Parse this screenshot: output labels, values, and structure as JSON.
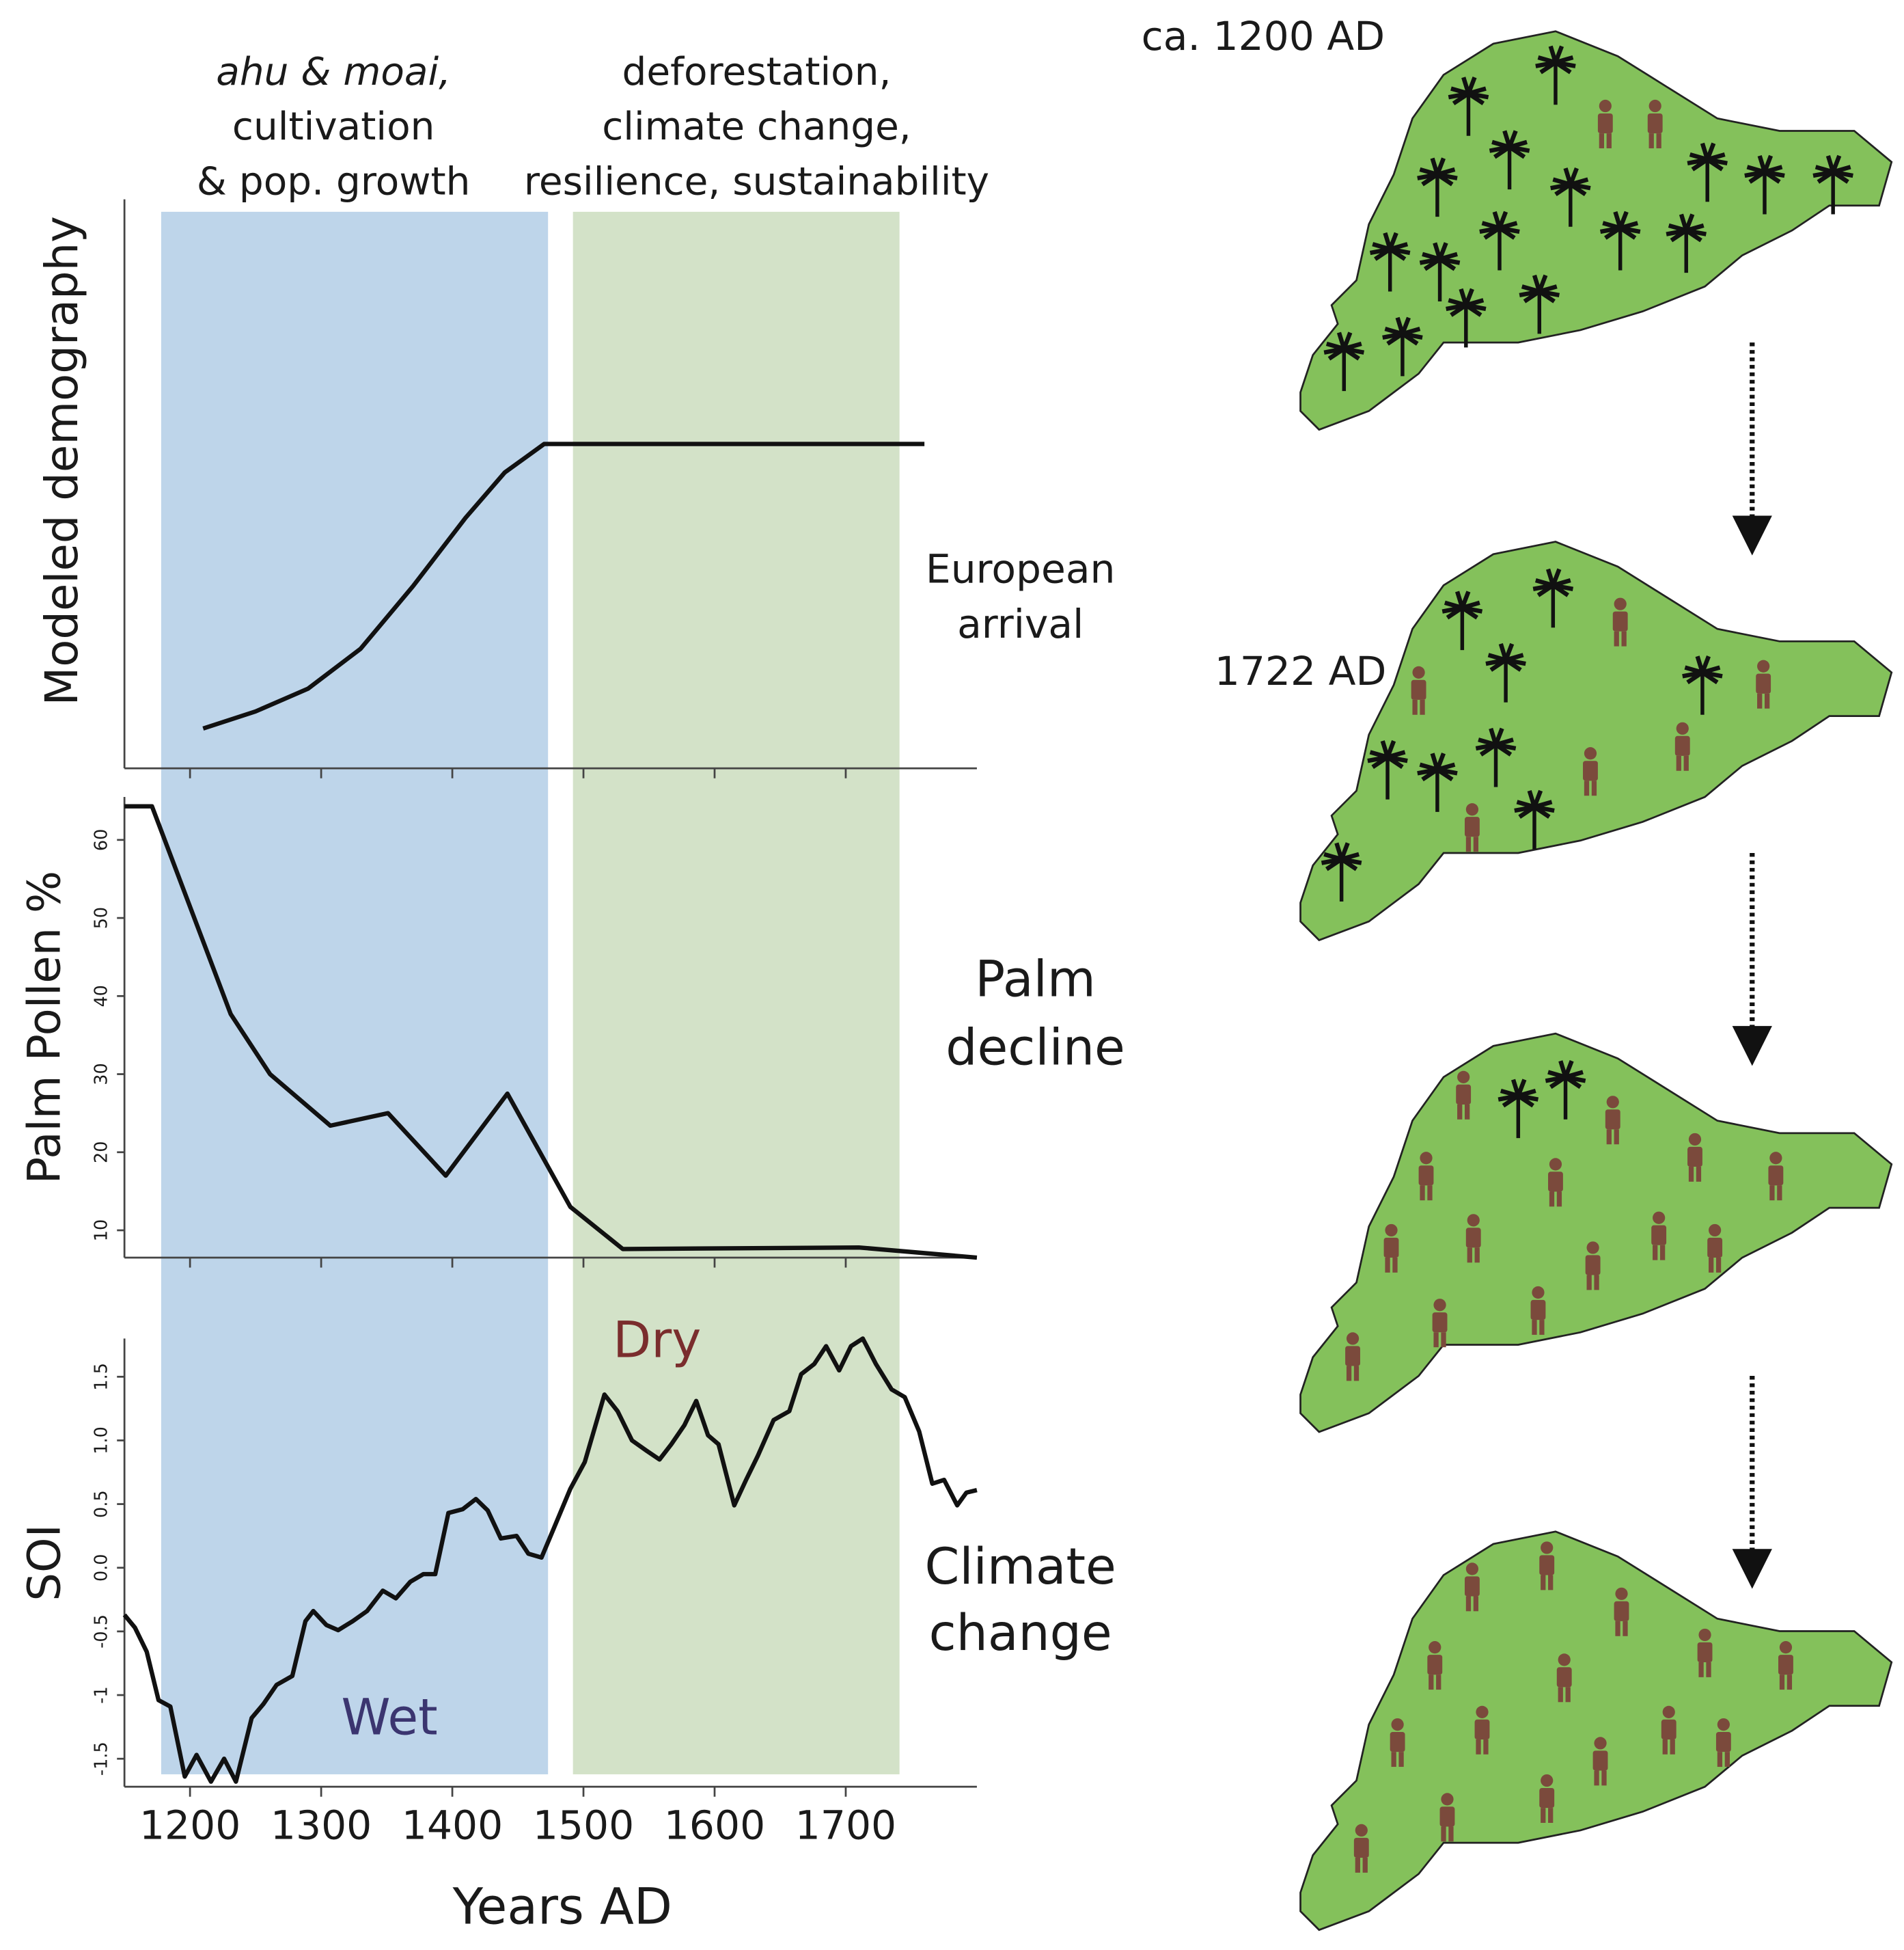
{
  "chart_data": [
    {
      "type": "line",
      "ylabel": "Modeled demography",
      "x": [
        1210,
        1250,
        1290,
        1330,
        1370,
        1410,
        1440,
        1470,
        1760
      ],
      "values": [
        7,
        10,
        14,
        21,
        32,
        44,
        52,
        57,
        57
      ],
      "ylim": [
        0,
        100
      ],
      "color": "#111111",
      "annotation": [
        "European",
        "arrival"
      ]
    },
    {
      "type": "line",
      "ylabel": "Palm Pollen %",
      "x": [
        1150,
        1171,
        1231,
        1261,
        1307,
        1351,
        1395,
        1442,
        1490,
        1530,
        1710,
        1800
      ],
      "values": [
        64.3,
        64.3,
        37.7,
        30,
        23.4,
        25,
        17,
        27.5,
        13,
        7.6,
        7.8,
        6.5
      ],
      "ylim": [
        6.5,
        65.5
      ],
      "yticks": [
        10,
        20,
        30,
        40,
        50,
        60
      ],
      "color": "#111111",
      "annotation": [
        "Palm",
        "decline"
      ]
    },
    {
      "type": "line",
      "ylabel": "SOI",
      "xlabel": "Years AD",
      "xlim": [
        1150,
        1800
      ],
      "xticks": [
        1200,
        1300,
        1400,
        1500,
        1600,
        1700
      ],
      "x": [
        1150,
        1158,
        1167,
        1176,
        1185,
        1196,
        1205,
        1216,
        1226,
        1235,
        1247,
        1256,
        1266,
        1278,
        1288,
        1294,
        1304,
        1313,
        1324,
        1335,
        1347,
        1357,
        1368,
        1378,
        1387,
        1397,
        1408,
        1418,
        1427,
        1437,
        1449,
        1458,
        1468,
        1477,
        1490,
        1501,
        1516,
        1526,
        1537,
        1548,
        1558,
        1567,
        1577,
        1586,
        1595,
        1603,
        1615,
        1624,
        1633,
        1645,
        1657,
        1666,
        1676,
        1685,
        1695,
        1704,
        1713,
        1723,
        1735,
        1745,
        1756,
        1766,
        1775,
        1785,
        1792,
        1800
      ],
      "values": [
        -0.37,
        -0.47,
        -0.66,
        -1.04,
        -1.09,
        -1.64,
        -1.47,
        -1.68,
        -1.5,
        -1.68,
        -1.18,
        -1.07,
        -0.92,
        -0.85,
        -0.42,
        -0.34,
        -0.45,
        -0.49,
        -0.42,
        -0.34,
        -0.18,
        -0.24,
        -0.11,
        -0.05,
        -0.05,
        0.43,
        0.46,
        0.54,
        0.45,
        0.23,
        0.25,
        0.11,
        0.08,
        0.3,
        0.62,
        0.83,
        1.36,
        1.23,
        1.0,
        0.92,
        0.85,
        0.97,
        1.12,
        1.31,
        1.04,
        0.97,
        0.49,
        0.69,
        0.88,
        1.16,
        1.23,
        1.52,
        1.6,
        1.74,
        1.55,
        1.74,
        1.8,
        1.6,
        1.4,
        1.34,
        1.07,
        0.66,
        0.69,
        0.49,
        0.59,
        0.61
      ],
      "ylim": [
        -1.72,
        1.8
      ],
      "yticks": [
        -1.5,
        -1.0,
        -0.5,
        {
          "value": 0,
          "label": "0.0"
        },
        0.5,
        {
          "value": 1,
          "label": "1.0"
        },
        1.5
      ],
      "color": "#111111",
      "annotations": [
        "Wet",
        "Dry"
      ],
      "annotation": [
        "Climate",
        "change"
      ]
    }
  ],
  "periods": [
    {
      "lines": [
        "ahu & moai,",
        "cultivation",
        "&  pop. growth"
      ],
      "start": 1178,
      "end": 1473,
      "color": "#bed5ea"
    },
    {
      "lines": [
        "deforestation,",
        "climate change,",
        "resilience, sustainability"
      ],
      "start": 1492,
      "end": 1741,
      "color": "#d3e2c8"
    }
  ],
  "maps": [
    {
      "label": "ca. 1200 AD"
    },
    {
      "label": "1722 AD"
    }
  ]
}
